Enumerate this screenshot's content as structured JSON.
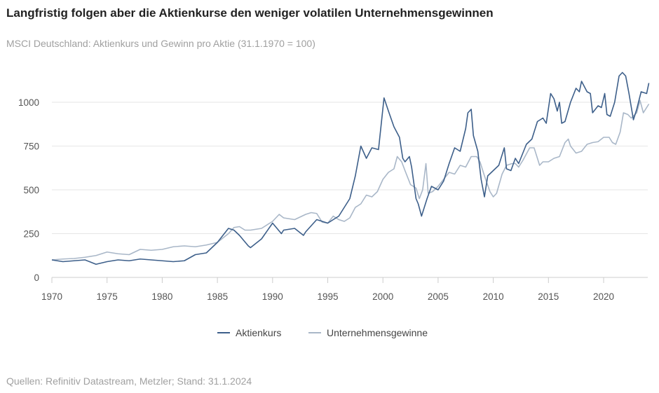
{
  "title": "Langfristig folgen aber die Aktienkurse den weniger volatilen Unternehmensgewinnen",
  "subtitle": "MSCI Deutschland: Aktienkurs und Gewinn pro Aktie (31.1.1970 = 100)",
  "source": "Quellen: Refinitiv Datastream, Metzler; Stand: 31.1.2024",
  "chart_data": {
    "type": "line",
    "title": "Langfristig folgen aber die Aktienkurse den weniger volatilen Unternehmensgewinnen",
    "subtitle": "MSCI Deutschland: Aktienkurs und Gewinn pro Aktie (31.1.1970 = 100)",
    "xlim": [
      1970,
      2024.1
    ],
    "ylim": [
      0,
      1200
    ],
    "xticks": [
      1970,
      1975,
      1980,
      1985,
      1990,
      1995,
      2000,
      2005,
      2010,
      2015,
      2020
    ],
    "yticks": [
      0,
      250,
      500,
      750,
      1000
    ],
    "grid": "horizontal",
    "legend": "bottom-center",
    "series": [
      {
        "name": "Aktienkurs",
        "color": "#3d5f8a",
        "points": [
          [
            1970,
            100
          ],
          [
            1971,
            90
          ],
          [
            1972,
            95
          ],
          [
            1973,
            100
          ],
          [
            1974,
            75
          ],
          [
            1975,
            90
          ],
          [
            1976,
            100
          ],
          [
            1977,
            95
          ],
          [
            1978,
            105
          ],
          [
            1979,
            100
          ],
          [
            1980,
            95
          ],
          [
            1981,
            90
          ],
          [
            1982,
            95
          ],
          [
            1983,
            130
          ],
          [
            1984,
            140
          ],
          [
            1985,
            200
          ],
          [
            1986,
            280
          ],
          [
            1986.5,
            270
          ],
          [
            1987,
            240
          ],
          [
            1987.8,
            180
          ],
          [
            1988,
            170
          ],
          [
            1989,
            220
          ],
          [
            1990,
            310
          ],
          [
            1990.8,
            250
          ],
          [
            1991,
            270
          ],
          [
            1992,
            280
          ],
          [
            1992.8,
            240
          ],
          [
            1993,
            260
          ],
          [
            1994,
            330
          ],
          [
            1995,
            310
          ],
          [
            1996,
            350
          ],
          [
            1997,
            450
          ],
          [
            1997.5,
            580
          ],
          [
            1998,
            750
          ],
          [
            1998.5,
            680
          ],
          [
            1999,
            740
          ],
          [
            1999.6,
            730
          ],
          [
            2000.1,
            1025
          ],
          [
            2000.5,
            950
          ],
          [
            2001,
            860
          ],
          [
            2001.5,
            800
          ],
          [
            2001.8,
            680
          ],
          [
            2002,
            660
          ],
          [
            2002.4,
            690
          ],
          [
            2002.6,
            630
          ],
          [
            2003,
            450
          ],
          [
            2003.2,
            420
          ],
          [
            2003.5,
            350
          ],
          [
            2004,
            450
          ],
          [
            2004.4,
            520
          ],
          [
            2005,
            500
          ],
          [
            2005.5,
            550
          ],
          [
            2006,
            650
          ],
          [
            2006.5,
            740
          ],
          [
            2007,
            720
          ],
          [
            2007.5,
            850
          ],
          [
            2007.7,
            940
          ],
          [
            2008,
            960
          ],
          [
            2008.2,
            810
          ],
          [
            2008.6,
            720
          ],
          [
            2008.9,
            560
          ],
          [
            2009.2,
            460
          ],
          [
            2009.5,
            580
          ],
          [
            2010,
            610
          ],
          [
            2010.5,
            640
          ],
          [
            2011,
            740
          ],
          [
            2011.2,
            620
          ],
          [
            2011.6,
            610
          ],
          [
            2012,
            680
          ],
          [
            2012.3,
            650
          ],
          [
            2013,
            760
          ],
          [
            2013.5,
            790
          ],
          [
            2014,
            890
          ],
          [
            2014.5,
            910
          ],
          [
            2014.8,
            880
          ],
          [
            2015.2,
            1050
          ],
          [
            2015.5,
            1020
          ],
          [
            2015.8,
            950
          ],
          [
            2016,
            1000
          ],
          [
            2016.2,
            880
          ],
          [
            2016.5,
            890
          ],
          [
            2017,
            1000
          ],
          [
            2017.5,
            1080
          ],
          [
            2017.8,
            1060
          ],
          [
            2018,
            1120
          ],
          [
            2018.5,
            1060
          ],
          [
            2018.8,
            1050
          ],
          [
            2019,
            940
          ],
          [
            2019.5,
            980
          ],
          [
            2019.8,
            970
          ],
          [
            2020.1,
            1050
          ],
          [
            2020.3,
            930
          ],
          [
            2020.6,
            920
          ],
          [
            2021,
            1000
          ],
          [
            2021.4,
            1150
          ],
          [
            2021.7,
            1170
          ],
          [
            2022,
            1150
          ],
          [
            2022.3,
            1050
          ],
          [
            2022.7,
            900
          ],
          [
            2023,
            960
          ],
          [
            2023.4,
            1060
          ],
          [
            2023.9,
            1050
          ],
          [
            2024.1,
            1110
          ]
        ]
      },
      {
        "name": "Unternehmensgewinne",
        "color": "#a9b7c8",
        "points": [
          [
            1970,
            100
          ],
          [
            1971,
            105
          ],
          [
            1972,
            108
          ],
          [
            1973,
            115
          ],
          [
            1974,
            125
          ],
          [
            1975,
            145
          ],
          [
            1976,
            135
          ],
          [
            1977,
            130
          ],
          [
            1978,
            160
          ],
          [
            1979,
            155
          ],
          [
            1980,
            160
          ],
          [
            1981,
            175
          ],
          [
            1982,
            180
          ],
          [
            1983,
            175
          ],
          [
            1984,
            185
          ],
          [
            1985,
            200
          ],
          [
            1986,
            250
          ],
          [
            1986.5,
            285
          ],
          [
            1987,
            290
          ],
          [
            1987.5,
            270
          ],
          [
            1988,
            270
          ],
          [
            1989,
            280
          ],
          [
            1990,
            320
          ],
          [
            1990.6,
            360
          ],
          [
            1991,
            340
          ],
          [
            1992,
            330
          ],
          [
            1992.5,
            345
          ],
          [
            1993,
            360
          ],
          [
            1993.5,
            370
          ],
          [
            1994,
            365
          ],
          [
            1994.5,
            315
          ],
          [
            1995,
            310
          ],
          [
            1995.5,
            350
          ],
          [
            1996,
            330
          ],
          [
            1996.5,
            320
          ],
          [
            1997,
            340
          ],
          [
            1997.5,
            400
          ],
          [
            1998,
            420
          ],
          [
            1998.5,
            470
          ],
          [
            1999,
            460
          ],
          [
            1999.5,
            490
          ],
          [
            2000,
            560
          ],
          [
            2000.5,
            600
          ],
          [
            2001,
            620
          ],
          [
            2001.3,
            690
          ],
          [
            2001.7,
            660
          ],
          [
            2002,
            610
          ],
          [
            2002.5,
            530
          ],
          [
            2003,
            510
          ],
          [
            2003.3,
            450
          ],
          [
            2003.6,
            500
          ],
          [
            2003.9,
            650
          ],
          [
            2004.1,
            480
          ],
          [
            2004.5,
            490
          ],
          [
            2005,
            520
          ],
          [
            2005.5,
            560
          ],
          [
            2006,
            600
          ],
          [
            2006.5,
            590
          ],
          [
            2007,
            640
          ],
          [
            2007.5,
            630
          ],
          [
            2008,
            690
          ],
          [
            2008.5,
            690
          ],
          [
            2008.8,
            660
          ],
          [
            2009.2,
            580
          ],
          [
            2009.7,
            490
          ],
          [
            2010,
            460
          ],
          [
            2010.3,
            480
          ],
          [
            2010.8,
            590
          ],
          [
            2011.2,
            640
          ],
          [
            2011.7,
            650
          ],
          [
            2012,
            650
          ],
          [
            2012.3,
            630
          ],
          [
            2012.7,
            670
          ],
          [
            2013.3,
            740
          ],
          [
            2013.7,
            740
          ],
          [
            2014.2,
            640
          ],
          [
            2014.5,
            660
          ],
          [
            2015,
            660
          ],
          [
            2015.5,
            680
          ],
          [
            2016,
            690
          ],
          [
            2016.5,
            770
          ],
          [
            2016.8,
            790
          ],
          [
            2017,
            750
          ],
          [
            2017.5,
            710
          ],
          [
            2018,
            720
          ],
          [
            2018.5,
            760
          ],
          [
            2019,
            770
          ],
          [
            2019.5,
            775
          ],
          [
            2020,
            800
          ],
          [
            2020.5,
            800
          ],
          [
            2020.8,
            770
          ],
          [
            2021.1,
            760
          ],
          [
            2021.5,
            830
          ],
          [
            2021.8,
            940
          ],
          [
            2022.2,
            930
          ],
          [
            2022.5,
            910
          ],
          [
            2023,
            940
          ],
          [
            2023.3,
            1010
          ],
          [
            2023.6,
            940
          ],
          [
            2024.1,
            990
          ]
        ]
      }
    ]
  }
}
